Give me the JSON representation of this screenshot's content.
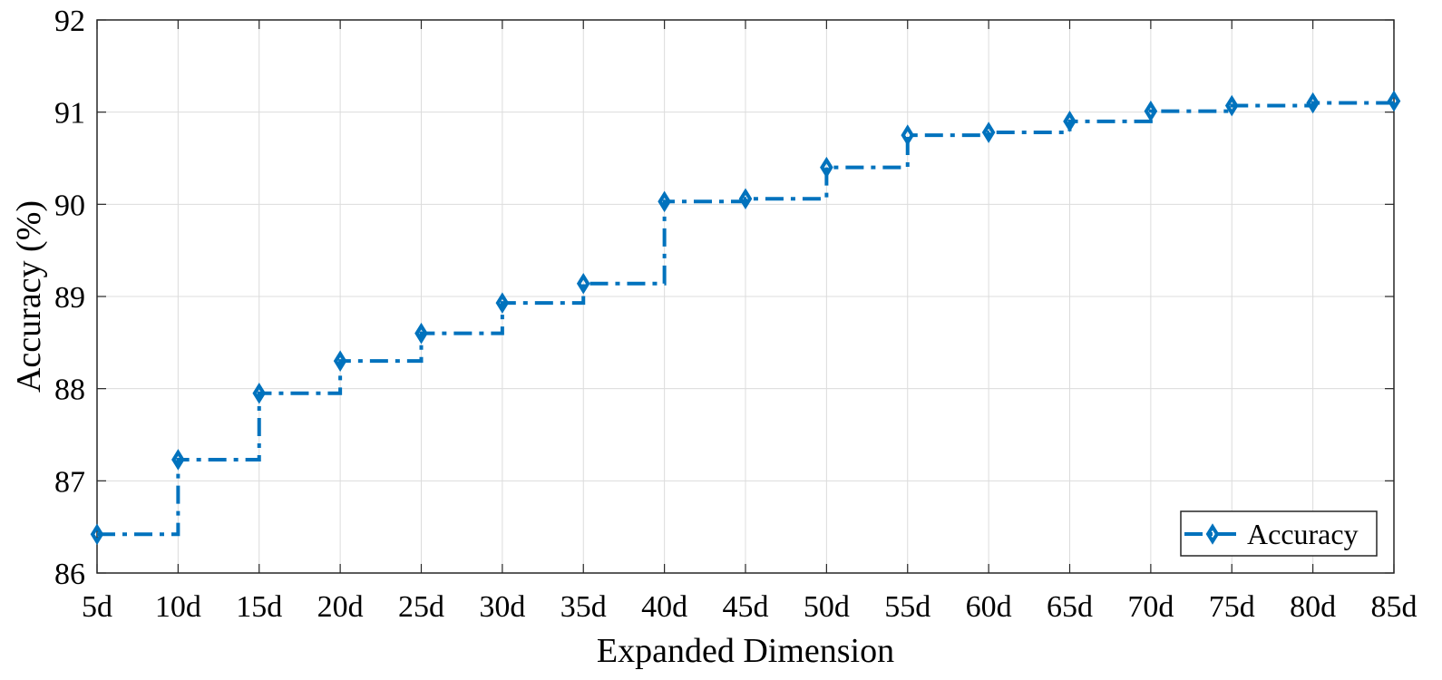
{
  "chart_data": {
    "type": "line",
    "step": "post",
    "title": "",
    "xlabel": "Expanded Dimension",
    "ylabel": "Accuracy (%)",
    "categories": [
      "5d",
      "10d",
      "15d",
      "20d",
      "25d",
      "30d",
      "35d",
      "40d",
      "45d",
      "50d",
      "55d",
      "60d",
      "65d",
      "70d",
      "75d",
      "80d",
      "85d"
    ],
    "ylim": [
      86,
      92
    ],
    "yticks": [
      86,
      87,
      88,
      89,
      90,
      91,
      92
    ],
    "grid": true,
    "legend_position": "bottom-right",
    "series": [
      {
        "name": "Accuracy",
        "color": "#0072BD",
        "line_style": "dash-dot",
        "marker": "diamond",
        "values": [
          86.42,
          87.23,
          87.95,
          88.3,
          88.6,
          88.93,
          89.14,
          90.03,
          90.06,
          90.4,
          90.75,
          90.78,
          90.9,
          91.01,
          91.07,
          91.1,
          91.12
        ]
      }
    ]
  }
}
